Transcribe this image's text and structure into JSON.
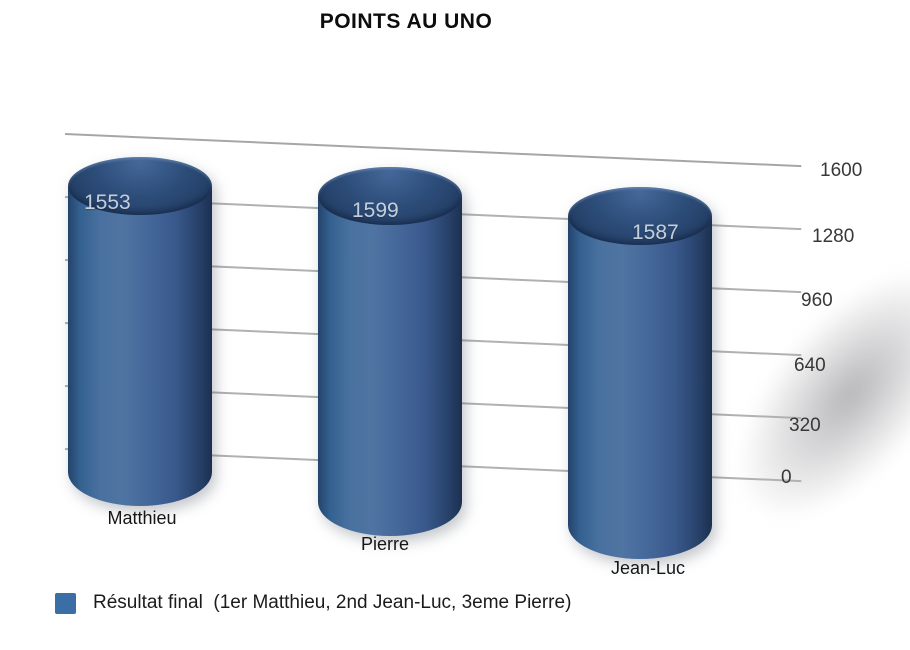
{
  "title": "POINTS AU UNO",
  "legend": {
    "swatch_color": "#3a6ea5",
    "label": "Résultat final  (1er Matthieu, 2nd Jean-Luc, 3eme Pierre)"
  },
  "chart_data": {
    "type": "bar",
    "subtype": "3d-cylinder",
    "title": "POINTS AU UNO",
    "categories": [
      "Matthieu",
      "Pierre",
      "Jean-Luc"
    ],
    "values": [
      1553,
      1599,
      1587
    ],
    "series": [
      {
        "name": "Résultat final",
        "values": [
          1553,
          1599,
          1587
        ]
      }
    ],
    "xlabel": "",
    "ylabel": "",
    "ylim": [
      0,
      1600
    ],
    "yticks": [
      0,
      320,
      640,
      960,
      1280,
      1600
    ],
    "grid": true,
    "legend_position": "bottom-left",
    "bar_color": "#3f6899",
    "background_color": "#ffffff"
  }
}
